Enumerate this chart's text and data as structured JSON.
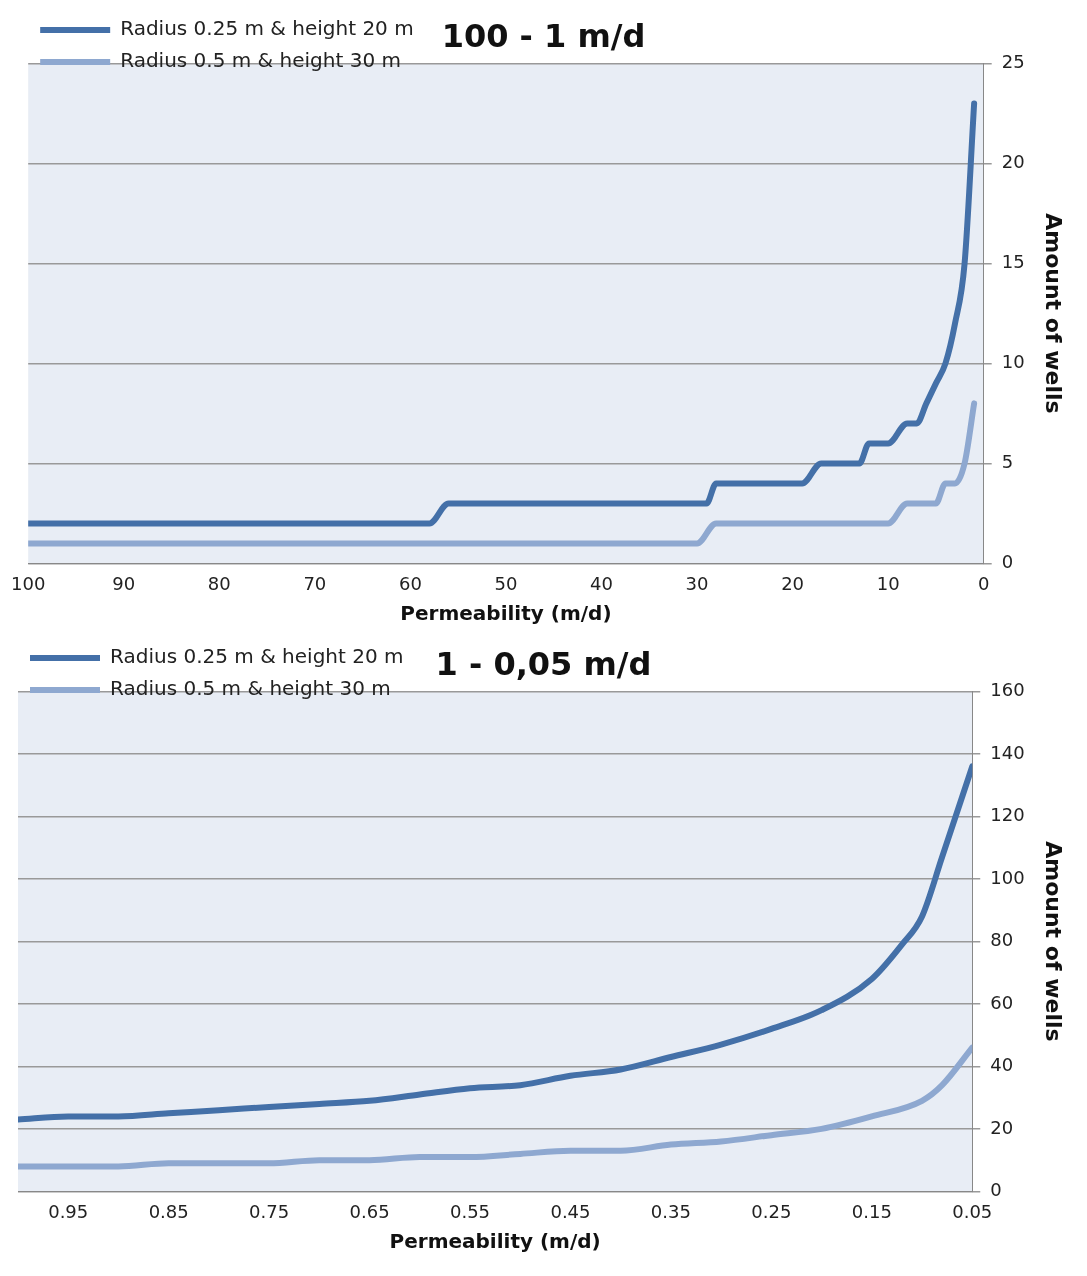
{
  "chart_data": [
    {
      "type": "line",
      "title": "100 - 1 m/d",
      "xlabel": "Permeability (m/d)",
      "ylabel": "Amount of wells",
      "xlim": [
        100,
        0
      ],
      "xticks": [
        100,
        90,
        80,
        70,
        60,
        50,
        40,
        30,
        20,
        10,
        0
      ],
      "ylim": [
        0,
        25
      ],
      "yticks": [
        0,
        5,
        10,
        15,
        20,
        25
      ],
      "grid": "y",
      "legend": "top left",
      "marker": "none",
      "series": [
        {
          "name": "Radius 0.25 m & height 20 m",
          "color": "#4470a8",
          "x": [
            100,
            58,
            56,
            29,
            28,
            19,
            17,
            13,
            12,
            10,
            8,
            7,
            6,
            5,
            4,
            3,
            2,
            1
          ],
          "values": [
            2,
            2,
            3,
            3,
            4,
            4,
            5,
            5,
            6,
            6,
            7,
            7,
            8,
            9,
            10,
            12,
            15,
            23
          ]
        },
        {
          "name": "Radius 0.5 m & height 30 m",
          "color": "#8ea8d0",
          "x": [
            100,
            30,
            28,
            10,
            8,
            5,
            4,
            3,
            2,
            1
          ],
          "values": [
            1,
            1,
            2,
            2,
            3,
            3,
            4,
            4,
            5,
            8
          ]
        }
      ]
    },
    {
      "type": "line",
      "title": "1 - 0,05 m/d",
      "xlabel": "Permeability (m/d)",
      "ylabel": "Amount of wells",
      "xlim": [
        1,
        0.05
      ],
      "xticks": [
        0.95,
        0.85,
        0.75,
        0.65,
        0.55,
        0.45,
        0.35,
        0.25,
        0.15,
        0.05
      ],
      "ylim": [
        0,
        160
      ],
      "yticks": [
        0,
        20,
        40,
        60,
        80,
        100,
        120,
        140,
        160
      ],
      "grid": "y",
      "legend": "top left",
      "marker": "none",
      "series": [
        {
          "name": "Radius 0.25 m & height 20 m",
          "color": "#4470a8",
          "x": [
            1,
            0.95,
            0.9,
            0.85,
            0.8,
            0.75,
            0.7,
            0.65,
            0.6,
            0.55,
            0.5,
            0.45,
            0.4,
            0.35,
            0.3,
            0.25,
            0.2,
            0.15,
            0.12,
            0.1,
            0.08,
            0.05
          ],
          "values": [
            23,
            24,
            24,
            25,
            26,
            27,
            28,
            29,
            31,
            33,
            34,
            37,
            39,
            43,
            47,
            52,
            58,
            68,
            79,
            88,
            107,
            136
          ]
        },
        {
          "name": "Radius 0.5 m & height 30 m",
          "color": "#8ea8d0",
          "x": [
            1,
            0.95,
            0.9,
            0.85,
            0.8,
            0.75,
            0.7,
            0.65,
            0.6,
            0.55,
            0.5,
            0.45,
            0.4,
            0.35,
            0.3,
            0.25,
            0.2,
            0.15,
            0.1,
            0.08,
            0.05
          ],
          "values": [
            8,
            8,
            8,
            9,
            9,
            9,
            10,
            10,
            11,
            11,
            12,
            13,
            13,
            15,
            16,
            18,
            20,
            24,
            29,
            34,
            46
          ]
        }
      ]
    }
  ]
}
